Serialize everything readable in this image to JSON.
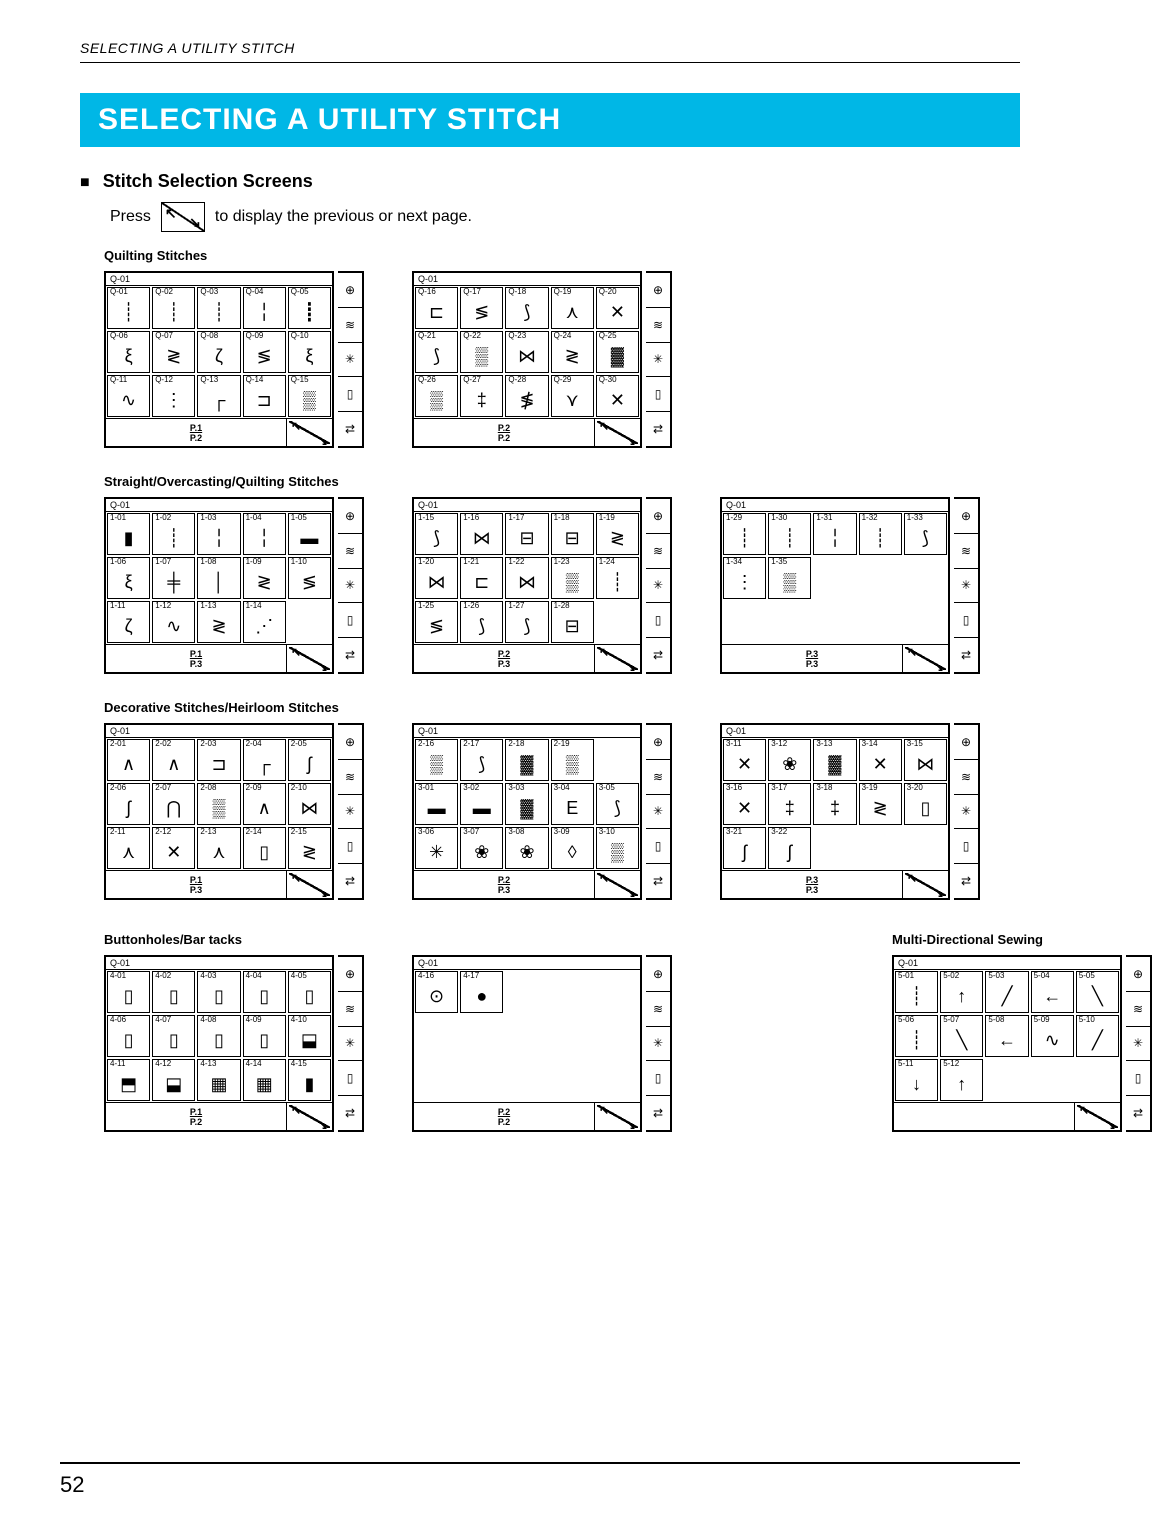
{
  "header": "SELECTING A UTILITY STITCH",
  "title": "SELECTING A UTILITY STITCH",
  "title_colors": {
    "bg": "#00b7e6",
    "text": "#ffffff"
  },
  "section": {
    "bullet": "■",
    "text": "Stitch Selection Screens"
  },
  "press_line": {
    "pre": "Press",
    "post": "to display the previous or next page."
  },
  "side_icons": [
    "⊕",
    "≋",
    "✳",
    "▯",
    "⇄"
  ],
  "categories": [
    {
      "label": "Quilting Stitches",
      "panels": [
        {
          "top": "Q-01",
          "pager": {
            "cur": "P.1",
            "total": "P.2"
          },
          "rows": [
            [
              "Q-01",
              "Q-02",
              "Q-03",
              "Q-04",
              "Q-05"
            ],
            [
              "Q-06",
              "Q-07",
              "Q-08",
              "Q-09",
              "Q-10"
            ],
            [
              "Q-11",
              "Q-12",
              "Q-13",
              "Q-14",
              "Q-15"
            ]
          ],
          "glyphs": [
            [
              "┊",
              "┊",
              "┊",
              "╎",
              "┋"
            ],
            [
              "ξ",
              "≷",
              "ζ",
              "≶",
              "ξ"
            ],
            [
              "∿",
              "⋮",
              "┌",
              "⊐",
              "▒"
            ]
          ]
        },
        {
          "top": "Q-01",
          "pager": {
            "cur": "P.2",
            "total": "P.2"
          },
          "rows": [
            [
              "Q-16",
              "Q-17",
              "Q-18",
              "Q-19",
              "Q-20"
            ],
            [
              "Q-21",
              "Q-22",
              "Q-23",
              "Q-24",
              "Q-25"
            ],
            [
              "Q-26",
              "Q-27",
              "Q-28",
              "Q-29",
              "Q-30"
            ]
          ],
          "glyphs": [
            [
              "⊏",
              "≶",
              "⟆",
              "⋏",
              "✕"
            ],
            [
              "⟆",
              "▒",
              "⋈",
              "≷",
              "▓"
            ],
            [
              "▒",
              "‡",
              "≸",
              "⋎",
              "✕"
            ]
          ]
        }
      ]
    },
    {
      "label": "Straight/Overcasting/Quilting Stitches",
      "panels": [
        {
          "top": "Q-01",
          "pager": {
            "cur": "P.1",
            "total": "P.3"
          },
          "rows": [
            [
              "1-01",
              "1-02",
              "1-03",
              "1-04",
              "1-05"
            ],
            [
              "1-06",
              "1-07",
              "1-08",
              "1-09",
              "1-10"
            ],
            [
              "1-11",
              "1-12",
              "1-13",
              "1-14",
              ""
            ]
          ],
          "glyphs": [
            [
              "▮",
              "┊",
              "╎",
              "╎",
              "▬"
            ],
            [
              "ξ",
              "╪",
              "│",
              "≷",
              "≶"
            ],
            [
              "ζ",
              "∿",
              "≷",
              "⋰",
              ""
            ]
          ]
        },
        {
          "top": "Q-01",
          "pager": {
            "cur": "P.2",
            "total": "P.3"
          },
          "rows": [
            [
              "1-15",
              "1-16",
              "1-17",
              "1-18",
              "1-19"
            ],
            [
              "1-20",
              "1-21",
              "1-22",
              "1-23",
              "1-24"
            ],
            [
              "1-25",
              "1-26",
              "1-27",
              "1-28",
              ""
            ]
          ],
          "glyphs": [
            [
              "⟆",
              "⋈",
              "⊟",
              "⊟",
              "≷"
            ],
            [
              "⋈",
              "⊏",
              "⋈",
              "▒",
              "┊"
            ],
            [
              "≶",
              "⟆",
              "⟆",
              "⊟",
              ""
            ]
          ]
        },
        {
          "top": "Q-01",
          "pager": {
            "cur": "P.3",
            "total": "P.3"
          },
          "rows": [
            [
              "1-29",
              "1-30",
              "1-31",
              "1-32",
              "1-33"
            ],
            [
              "1-34",
              "1-35",
              "",
              "",
              ""
            ],
            [
              "",
              "",
              "",
              "",
              ""
            ]
          ],
          "glyphs": [
            [
              "┊",
              "┊",
              "╎",
              "┊",
              "⟆"
            ],
            [
              "⋮",
              "▒",
              "",
              "",
              ""
            ],
            [
              "",
              "",
              "",
              "",
              ""
            ]
          ]
        }
      ]
    },
    {
      "label": "Decorative Stitches/Heirloom Stitches",
      "panels": [
        {
          "top": "Q-01",
          "pager": {
            "cur": "P.1",
            "total": "P.3"
          },
          "rows": [
            [
              "2-01",
              "2-02",
              "2-03",
              "2-04",
              "2-05"
            ],
            [
              "2-06",
              "2-07",
              "2-08",
              "2-09",
              "2-10"
            ],
            [
              "2-11",
              "2-12",
              "2-13",
              "2-14",
              "2-15"
            ]
          ],
          "glyphs": [
            [
              "∧",
              "∧",
              "⊐",
              "┌",
              "ʃ"
            ],
            [
              "ʃ",
              "⋂",
              "▒",
              "∧",
              "⋈"
            ],
            [
              "⋏",
              "✕",
              "⋏",
              "▯",
              "≷"
            ]
          ]
        },
        {
          "top": "Q-01",
          "pager": {
            "cur": "P.2",
            "total": "P.3"
          },
          "rows": [
            [
              "2-16",
              "2-17",
              "2-18",
              "2-19",
              ""
            ],
            [
              "3-01",
              "3-02",
              "3-03",
              "3-04",
              "3-05"
            ],
            [
              "3-06",
              "3-07",
              "3-08",
              "3-09",
              "3-10"
            ]
          ],
          "glyphs": [
            [
              "▒",
              "⟆",
              "▓",
              "▒",
              ""
            ],
            [
              "▬",
              "▬",
              "▓",
              "E",
              "⟆"
            ],
            [
              "✳",
              "❀",
              "❀",
              "◊",
              "▒"
            ]
          ]
        },
        {
          "top": "Q-01",
          "pager": {
            "cur": "P.3",
            "total": "P.3"
          },
          "rows": [
            [
              "3-11",
              "3-12",
              "3-13",
              "3-14",
              "3-15"
            ],
            [
              "3-16",
              "3-17",
              "3-18",
              "3-19",
              "3-20"
            ],
            [
              "3-21",
              "3-22",
              "",
              "",
              ""
            ]
          ],
          "glyphs": [
            [
              "✕",
              "❀",
              "▓",
              "✕",
              "⋈"
            ],
            [
              "✕",
              "‡",
              "‡",
              "≷",
              "▯"
            ],
            [
              "ʃ",
              "ʃ",
              "",
              "",
              ""
            ]
          ]
        }
      ]
    }
  ],
  "bottom_row": [
    {
      "label": "Buttonholes/Bar tacks",
      "panels": [
        {
          "top": "Q-01",
          "pager": {
            "cur": "P.1",
            "total": "P.2"
          },
          "rows": [
            [
              "4-01",
              "4-02",
              "4-03",
              "4-04",
              "4-05"
            ],
            [
              "4-06",
              "4-07",
              "4-08",
              "4-09",
              "4-10"
            ],
            [
              "4-11",
              "4-12",
              "4-13",
              "4-14",
              "4-15"
            ]
          ],
          "glyphs": [
            [
              "▯",
              "▯",
              "▯",
              "▯",
              "▯"
            ],
            [
              "▯",
              "▯",
              "▯",
              "▯",
              "⬓"
            ],
            [
              "⬒",
              "⬓",
              "▦",
              "▦",
              "▮"
            ]
          ]
        },
        {
          "top": "Q-01",
          "pager": {
            "cur": "P.2",
            "total": "P.2"
          },
          "rows": [
            [
              "4-16",
              "4-17",
              "",
              "",
              ""
            ],
            [
              "",
              "",
              "",
              "",
              ""
            ],
            [
              "",
              "",
              "",
              "",
              ""
            ]
          ],
          "glyphs": [
            [
              "⊙",
              "●",
              "",
              "",
              ""
            ],
            [
              "",
              "",
              "",
              "",
              ""
            ],
            [
              "",
              "",
              "",
              "",
              ""
            ]
          ]
        }
      ]
    },
    {
      "label": "Multi-Directional Sewing",
      "panels": [
        {
          "top": "Q-01",
          "pager": null,
          "rows": [
            [
              "5-01",
              "5-02",
              "5-03",
              "5-04",
              "5-05"
            ],
            [
              "5-06",
              "5-07",
              "5-08",
              "5-09",
              "5-10"
            ],
            [
              "5-11",
              "5-12",
              "",
              "",
              ""
            ]
          ],
          "glyphs": [
            [
              "┊",
              "↑",
              "╱",
              "←",
              "╲"
            ],
            [
              "┊",
              "╲",
              "←",
              "∿",
              "╱"
            ],
            [
              "↓",
              "↑",
              "",
              "",
              ""
            ]
          ]
        }
      ]
    }
  ],
  "page_number": "52"
}
